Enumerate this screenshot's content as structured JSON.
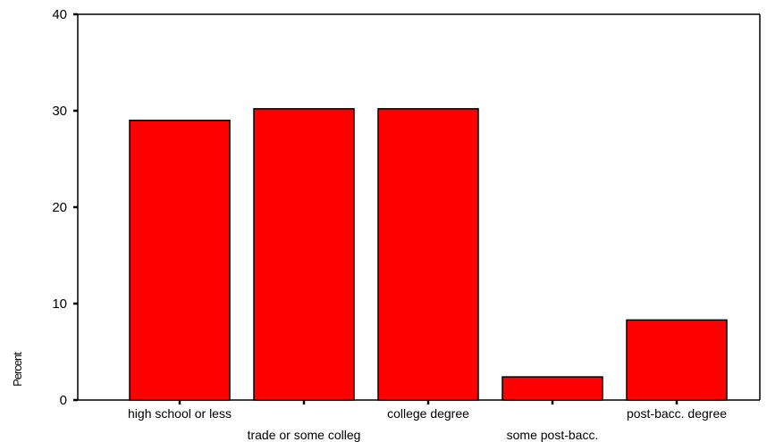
{
  "chart_data": {
    "type": "bar",
    "categories": [
      "high school or less",
      "trade or some colleg",
      "college degree",
      "some post-bacc.",
      "post-bacc. degree"
    ],
    "values": [
      29.0,
      30.2,
      30.2,
      2.4,
      8.3
    ],
    "ylabel": "Percent",
    "xlabel": "",
    "ylim": [
      0,
      40
    ],
    "yticks": [
      0,
      10,
      20,
      30,
      40
    ],
    "grid": false,
    "bar_color": "#ff0000",
    "bar_edge_color": "#000000"
  }
}
